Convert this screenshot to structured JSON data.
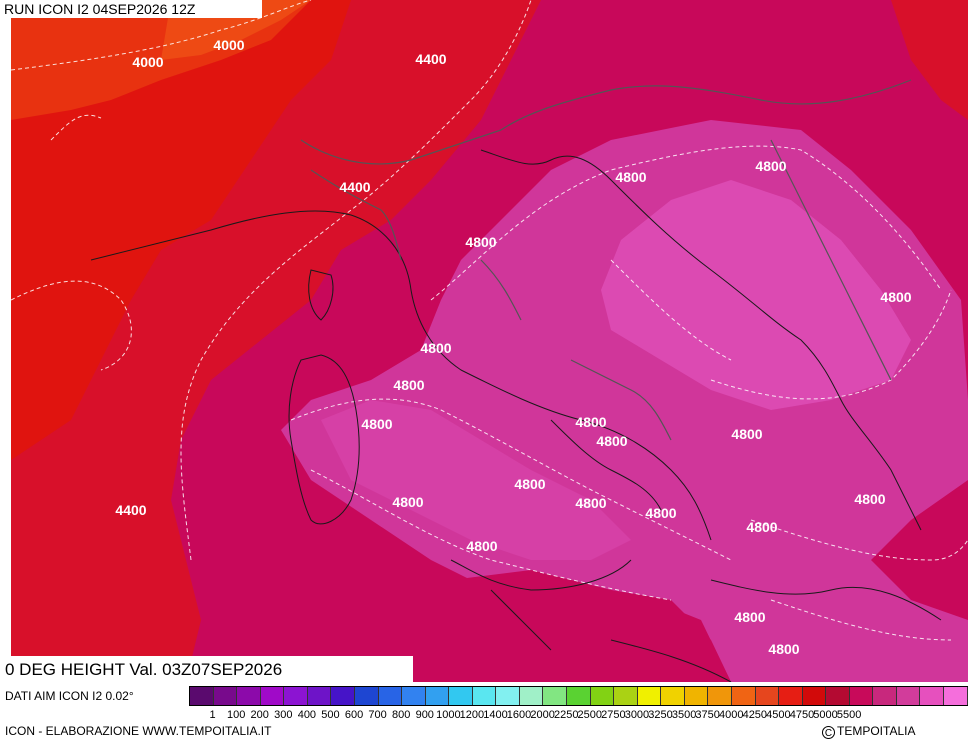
{
  "header": {
    "run_title": "RUN ICON I2 04SEP2026 12Z"
  },
  "footer": {
    "valid_title": "0 DEG HEIGHT Val. 03Z07SEP2026",
    "source": "DATI AIM ICON I2 0.02°",
    "credit": "ICON - ELABORAZIONE WWW.TEMPOITALIA.IT",
    "copyright": "TEMPOITALIA",
    "copyright_symbol": "C"
  },
  "contour_labels": [
    {
      "text": "4000"
    },
    {
      "text": "4000"
    },
    {
      "text": "4400"
    },
    {
      "text": "4400"
    },
    {
      "text": "4800"
    },
    {
      "text": "4800"
    },
    {
      "text": "4800"
    },
    {
      "text": "4800"
    },
    {
      "text": "4800"
    },
    {
      "text": "4800"
    },
    {
      "text": "4800"
    },
    {
      "text": "4800"
    },
    {
      "text": "4800"
    },
    {
      "text": "4800"
    },
    {
      "text": "4800"
    },
    {
      "text": "4800"
    },
    {
      "text": "4800"
    },
    {
      "text": "4800"
    },
    {
      "text": "4800"
    },
    {
      "text": "4800"
    },
    {
      "text": "4800"
    },
    {
      "text": "4800"
    },
    {
      "text": "4400"
    }
  ],
  "legend": {
    "colors": [
      "#5a0a6e",
      "#780a8c",
      "#8c0aaa",
      "#a00ac8",
      "#8c14d2",
      "#6e14c8",
      "#4614c8",
      "#1e46d2",
      "#2864e6",
      "#3282f0",
      "#32a0f0",
      "#32c8f0",
      "#5ae6f0",
      "#82f0f0",
      "#a0f0c8",
      "#82e682",
      "#5ad232",
      "#82d214",
      "#aad214",
      "#f0f000",
      "#f0d200",
      "#f0b400",
      "#f0960a",
      "#f06414",
      "#e6461e",
      "#e61e14",
      "#d20a0a",
      "#b40a32",
      "#c80a5a",
      "#c8287d",
      "#d23c9b",
      "#e650be",
      "#f56edc"
    ],
    "labels": [
      "1",
      "100",
      "200",
      "300",
      "400",
      "500",
      "600",
      "700",
      "800",
      "900",
      "1000",
      "1200",
      "1400",
      "1600",
      "2000",
      "2250",
      "2500",
      "2750",
      "3000",
      "3250",
      "3500",
      "3750",
      "4000",
      "4250",
      "4500",
      "4750",
      "5000",
      "5500"
    ]
  }
}
